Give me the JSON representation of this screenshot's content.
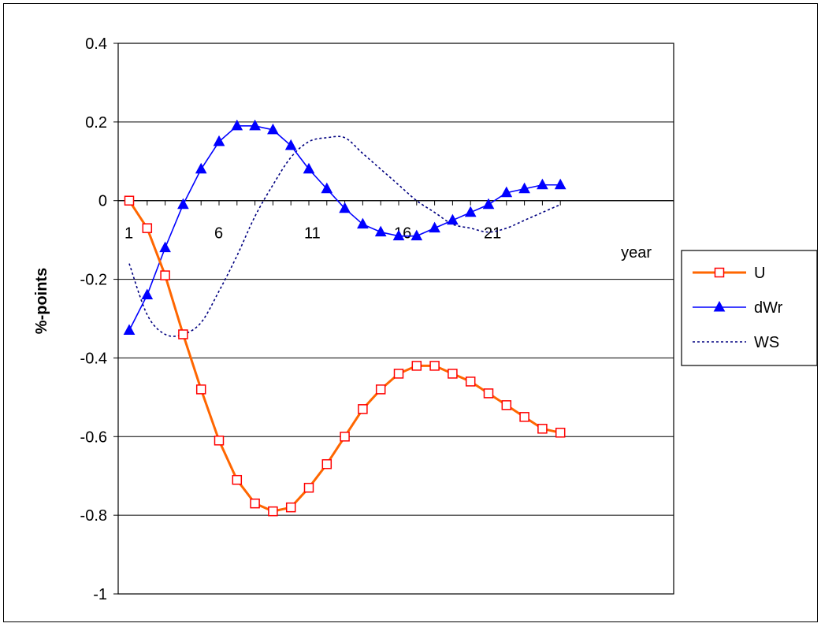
{
  "chart_data": {
    "type": "line",
    "title": "",
    "xlabel": "year",
    "ylabel": "%-points",
    "x": [
      1,
      2,
      3,
      4,
      5,
      6,
      7,
      8,
      9,
      10,
      11,
      12,
      13,
      14,
      15,
      16,
      17,
      18,
      19,
      20,
      21,
      22,
      23,
      24,
      25
    ],
    "x_tick_labels": [
      "1",
      "6",
      "11",
      "16",
      "21"
    ],
    "y_tick_labels": [
      "0.4",
      "0.2",
      "0",
      "-0.2",
      "-0.4",
      "-0.6",
      "-0.8",
      "-1"
    ],
    "ylim": [
      -1,
      0.4
    ],
    "grid": "horizontal major gridlines",
    "legend_position": "right",
    "series": [
      {
        "name": "U",
        "color": "#FF6600",
        "marker": "open-square",
        "values": [
          0,
          -0.07,
          -0.19,
          -0.34,
          -0.48,
          -0.61,
          -0.71,
          -0.77,
          -0.79,
          -0.78,
          -0.73,
          -0.67,
          -0.6,
          -0.53,
          -0.48,
          -0.44,
          -0.42,
          -0.42,
          -0.44,
          -0.46,
          -0.49,
          -0.52,
          -0.55,
          -0.58,
          -0.59
        ]
      },
      {
        "name": "dWr",
        "color": "#0000FF",
        "marker": "triangle",
        "values": [
          -0.33,
          -0.24,
          -0.12,
          -0.01,
          0.08,
          0.15,
          0.19,
          0.19,
          0.18,
          0.14,
          0.08,
          0.03,
          -0.02,
          -0.06,
          -0.08,
          -0.09,
          -0.09,
          -0.07,
          -0.05,
          -0.03,
          -0.01,
          0.02,
          0.03,
          0.04,
          0.04
        ]
      },
      {
        "name": "WS",
        "color": "#000080",
        "marker": "none",
        "dashed": true,
        "values": [
          -0.16,
          -0.29,
          -0.34,
          -0.34,
          -0.31,
          -0.23,
          -0.14,
          -0.04,
          0.04,
          0.11,
          0.15,
          0.16,
          0.16,
          0.12,
          0.08,
          0.04,
          0.0,
          -0.03,
          -0.06,
          -0.07,
          -0.08,
          -0.07,
          -0.05,
          -0.03,
          -0.01
        ]
      }
    ]
  }
}
